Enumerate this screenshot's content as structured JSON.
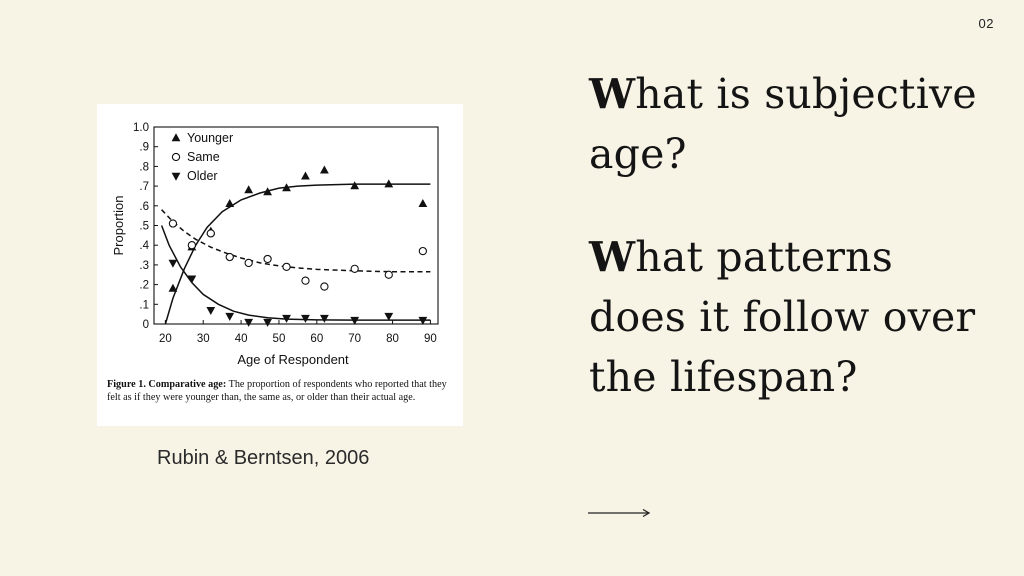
{
  "slide": {
    "page_number": "02",
    "question_1": {
      "initial": "W",
      "rest": "hat is subjective age?"
    },
    "question_2": {
      "initial": "W",
      "rest": "hat patterns does it follow over the lifespan?"
    },
    "citation": "Rubin & Berntsen, 2006",
    "arrow_icon": "long-right-arrow-icon"
  },
  "figure": {
    "caption_label": "Figure 1. Comparative age:",
    "caption_text": "The proportion of respondents who reported that they felt as if they were younger than, the same as, or older than their actual age."
  },
  "chart_data": {
    "type": "scatter",
    "xlabel": "Age of Respondent",
    "ylabel": "Proportion",
    "xlim": [
      17,
      92
    ],
    "ylim": [
      0,
      1.0
    ],
    "x_ticks": [
      20,
      30,
      40,
      50,
      60,
      70,
      80,
      90
    ],
    "y_ticks": [
      0,
      0.1,
      0.2,
      0.3,
      0.4,
      0.5,
      0.6,
      0.7,
      0.8,
      0.9,
      1.0
    ],
    "y_tick_labels": [
      "0",
      ".1",
      ".2",
      ".3",
      ".4",
      ".5",
      ".6",
      ".7",
      ".8",
      ".9",
      "1.0"
    ],
    "legend_position": "top-left",
    "grid": false,
    "series": [
      {
        "name": "Younger",
        "marker": "triangle-up",
        "points": [
          [
            22,
            0.18
          ],
          [
            27,
            0.39
          ],
          [
            32,
            0.47
          ],
          [
            37,
            0.61
          ],
          [
            42,
            0.68
          ],
          [
            47,
            0.67
          ],
          [
            52,
            0.69
          ],
          [
            57,
            0.75
          ],
          [
            62,
            0.78
          ],
          [
            70,
            0.7
          ],
          [
            79,
            0.71
          ],
          [
            88,
            0.61
          ]
        ],
        "fit": [
          [
            20,
            0.0
          ],
          [
            22,
            0.13
          ],
          [
            25,
            0.28
          ],
          [
            28,
            0.4
          ],
          [
            31,
            0.49
          ],
          [
            35,
            0.57
          ],
          [
            40,
            0.63
          ],
          [
            45,
            0.665
          ],
          [
            50,
            0.69
          ],
          [
            55,
            0.7
          ],
          [
            60,
            0.705
          ],
          [
            70,
            0.71
          ],
          [
            80,
            0.71
          ],
          [
            90,
            0.71
          ]
        ],
        "fit_style": "solid"
      },
      {
        "name": "Same",
        "marker": "circle-open",
        "points": [
          [
            22,
            0.51
          ],
          [
            27,
            0.4
          ],
          [
            32,
            0.46
          ],
          [
            37,
            0.34
          ],
          [
            42,
            0.31
          ],
          [
            47,
            0.33
          ],
          [
            52,
            0.29
          ],
          [
            57,
            0.22
          ],
          [
            62,
            0.19
          ],
          [
            70,
            0.28
          ],
          [
            79,
            0.25
          ],
          [
            88,
            0.37
          ]
        ],
        "fit": [
          [
            19,
            0.58
          ],
          [
            22,
            0.52
          ],
          [
            25,
            0.47
          ],
          [
            28,
            0.43
          ],
          [
            32,
            0.39
          ],
          [
            36,
            0.36
          ],
          [
            40,
            0.335
          ],
          [
            45,
            0.31
          ],
          [
            50,
            0.295
          ],
          [
            55,
            0.285
          ],
          [
            60,
            0.277
          ],
          [
            70,
            0.27
          ],
          [
            80,
            0.265
          ],
          [
            90,
            0.265
          ]
        ],
        "fit_style": "dashed"
      },
      {
        "name": "Older",
        "marker": "triangle-down",
        "points": [
          [
            22,
            0.31
          ],
          [
            27,
            0.23
          ],
          [
            32,
            0.07
          ],
          [
            37,
            0.04
          ],
          [
            42,
            0.01
          ],
          [
            47,
            0.01
          ],
          [
            52,
            0.03
          ],
          [
            57,
            0.03
          ],
          [
            62,
            0.03
          ],
          [
            70,
            0.02
          ],
          [
            79,
            0.04
          ],
          [
            88,
            0.02
          ]
        ],
        "fit": [
          [
            19,
            0.5
          ],
          [
            21,
            0.4
          ],
          [
            24,
            0.29
          ],
          [
            27,
            0.21
          ],
          [
            30,
            0.15
          ],
          [
            34,
            0.1
          ],
          [
            38,
            0.065
          ],
          [
            42,
            0.045
          ],
          [
            47,
            0.032
          ],
          [
            52,
            0.025
          ],
          [
            60,
            0.021
          ],
          [
            70,
            0.02
          ],
          [
            80,
            0.02
          ],
          [
            90,
            0.02
          ]
        ],
        "fit_style": "solid"
      }
    ]
  }
}
